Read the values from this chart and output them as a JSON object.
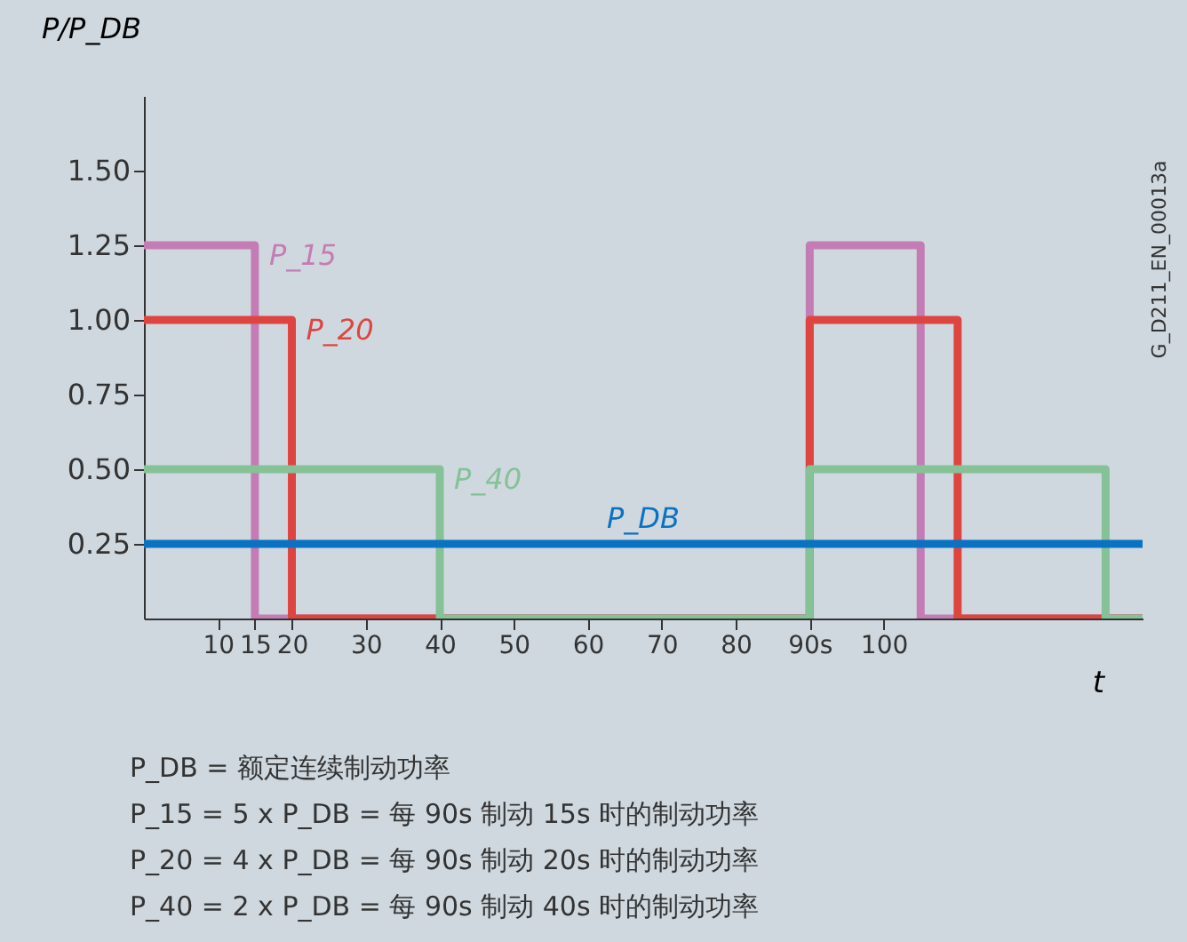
{
  "chart_data": {
    "type": "step",
    "xlabel": "t",
    "ylabel": "P/P_DB",
    "xlim": [
      0,
      135
    ],
    "ylim": [
      0,
      1.75
    ],
    "xticks": [
      10,
      15,
      20,
      30,
      40,
      50,
      60,
      70,
      80,
      {
        "value": 90,
        "label": "90s"
      },
      100
    ],
    "yticks": [
      {
        "value": 0.25,
        "label": "0.25"
      },
      {
        "value": 0.5,
        "label": "0.50"
      },
      {
        "value": 0.75,
        "label": "0.75"
      },
      {
        "value": 1.0,
        "label": "1.00"
      },
      {
        "value": 1.25,
        "label": "1.25"
      },
      {
        "value": 1.5,
        "label": "1.50"
      }
    ],
    "marker": "none",
    "line_style": "solid",
    "series": [
      {
        "name": "P_15",
        "color": "#c47db4",
        "x": [
          0,
          15,
          90,
          105,
          135
        ],
        "values": [
          1.25,
          0,
          1.25,
          0,
          0
        ]
      },
      {
        "name": "P_20",
        "color": "#de4540",
        "x": [
          0,
          20,
          90,
          110,
          135
        ],
        "values": [
          1.0,
          0,
          1.0,
          0,
          0
        ]
      },
      {
        "name": "P_40",
        "color": "#86c197",
        "x": [
          0,
          40,
          90,
          130,
          135
        ],
        "values": [
          0.5,
          0,
          0.5,
          0,
          0
        ]
      },
      {
        "name": "P_DB",
        "color": "#0a72c2",
        "x": [
          0,
          135
        ],
        "values": [
          0.25,
          0.25
        ]
      }
    ],
    "annotations": [
      "P_DB = 额定连续制动功率",
      "P_15 = 5 x P_DB = 每 90s 制动 15s 时的制动功率",
      "P_20 = 4 x P_DB = 每 90s 制动 20s 时的制动功率",
      "P_40 = 2 x P_DB = 每 90s 制动 40s 时的制动功率",
      "G_D211_EN_00013a"
    ]
  }
}
